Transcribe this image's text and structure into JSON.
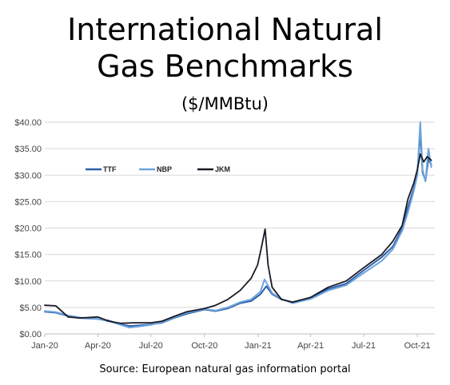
{
  "header": {
    "title_line1": "International Natural",
    "title_line2": "Gas Benchmarks",
    "subtitle": "($/MMBtu)"
  },
  "source": "Source: European natural gas information portal",
  "chart_data": {
    "type": "line",
    "title": "International Natural Gas Benchmarks",
    "subtitle": "($/MMBtu)",
    "xlabel": "",
    "ylabel": "",
    "x_range": [
      "2020-01-01",
      "2021-10-31"
    ],
    "ylim": [
      0,
      40
    ],
    "y_ticks": [
      0,
      5,
      10,
      15,
      20,
      25,
      30,
      35,
      40
    ],
    "y_tick_labels": [
      "$0.00",
      "$5.00",
      "$10.00",
      "$15.00",
      "$20.00",
      "$25.00",
      "$30.00",
      "$35.00",
      "$40.00"
    ],
    "x_ticks": [
      "2020-01-01",
      "2020-04-01",
      "2020-07-01",
      "2020-10-01",
      "2021-01-01",
      "2021-04-01",
      "2021-07-01",
      "2021-10-01"
    ],
    "x_tick_labels": [
      "Jan-20",
      "Apr-20",
      "Jul-20",
      "Oct-20",
      "Jan-21",
      "Apr-21",
      "Jul-21",
      "Oct-21"
    ],
    "grid": "horizontal",
    "legend_position": "top-left",
    "series": [
      {
        "name": "TTF",
        "color": "#2f5ea8",
        "points": [
          [
            "2020-01-01",
            4.2
          ],
          [
            "2020-01-20",
            4.0
          ],
          [
            "2020-02-10",
            3.4
          ],
          [
            "2020-03-01",
            3.0
          ],
          [
            "2020-04-01",
            2.8
          ],
          [
            "2020-04-20",
            2.5
          ],
          [
            "2020-05-10",
            1.8
          ],
          [
            "2020-05-25",
            1.5
          ],
          [
            "2020-06-10",
            1.6
          ],
          [
            "2020-07-01",
            1.8
          ],
          [
            "2020-07-20",
            2.1
          ],
          [
            "2020-08-10",
            3.0
          ],
          [
            "2020-09-01",
            3.8
          ],
          [
            "2020-10-01",
            4.6
          ],
          [
            "2020-10-20",
            4.3
          ],
          [
            "2020-11-10",
            4.8
          ],
          [
            "2020-12-01",
            5.8
          ],
          [
            "2020-12-20",
            6.2
          ],
          [
            "2021-01-05",
            7.5
          ],
          [
            "2021-01-15",
            9.0
          ],
          [
            "2021-01-25",
            7.5
          ],
          [
            "2021-02-10",
            6.5
          ],
          [
            "2021-03-01",
            6.0
          ],
          [
            "2021-04-01",
            6.8
          ],
          [
            "2021-05-01",
            8.5
          ],
          [
            "2021-06-01",
            9.5
          ],
          [
            "2021-07-01",
            12.0
          ],
          [
            "2021-08-01",
            14.5
          ],
          [
            "2021-08-20",
            16.5
          ],
          [
            "2021-09-05",
            20.0
          ],
          [
            "2021-09-15",
            24.0
          ],
          [
            "2021-09-25",
            27.5
          ],
          [
            "2021-10-01",
            30.5
          ],
          [
            "2021-10-06",
            38.0
          ],
          [
            "2021-10-10",
            30.5
          ],
          [
            "2021-10-15",
            29.0
          ],
          [
            "2021-10-20",
            33.0
          ],
          [
            "2021-10-25",
            32.0
          ]
        ]
      },
      {
        "name": "NBP",
        "color": "#6ba4dd",
        "points": [
          [
            "2020-01-01",
            4.3
          ],
          [
            "2020-01-20",
            4.1
          ],
          [
            "2020-02-10",
            3.5
          ],
          [
            "2020-03-01",
            3.1
          ],
          [
            "2020-04-01",
            2.8
          ],
          [
            "2020-04-20",
            2.4
          ],
          [
            "2020-05-10",
            1.7
          ],
          [
            "2020-05-25",
            1.2
          ],
          [
            "2020-06-10",
            1.4
          ],
          [
            "2020-07-01",
            1.7
          ],
          [
            "2020-07-20",
            2.2
          ],
          [
            "2020-08-10",
            3.1
          ],
          [
            "2020-09-01",
            4.0
          ],
          [
            "2020-10-01",
            4.7
          ],
          [
            "2020-10-20",
            4.4
          ],
          [
            "2020-11-10",
            5.0
          ],
          [
            "2020-12-01",
            6.0
          ],
          [
            "2020-12-20",
            6.5
          ],
          [
            "2021-01-05",
            8.0
          ],
          [
            "2021-01-12",
            10.3
          ],
          [
            "2021-01-25",
            7.7
          ],
          [
            "2021-02-10",
            6.6
          ],
          [
            "2021-03-01",
            5.8
          ],
          [
            "2021-04-01",
            6.6
          ],
          [
            "2021-05-01",
            8.2
          ],
          [
            "2021-06-01",
            9.2
          ],
          [
            "2021-07-01",
            11.5
          ],
          [
            "2021-08-01",
            13.8
          ],
          [
            "2021-08-20",
            16.0
          ],
          [
            "2021-09-05",
            19.5
          ],
          [
            "2021-09-15",
            23.0
          ],
          [
            "2021-09-25",
            27.0
          ],
          [
            "2021-10-01",
            30.0
          ],
          [
            "2021-10-06",
            40.0
          ],
          [
            "2021-10-10",
            31.0
          ],
          [
            "2021-10-15",
            28.8
          ],
          [
            "2021-10-20",
            35.0
          ],
          [
            "2021-10-25",
            31.5
          ]
        ]
      },
      {
        "name": "JKM",
        "color": "#1a1a26",
        "points": [
          [
            "2020-01-01",
            5.4
          ],
          [
            "2020-01-20",
            5.3
          ],
          [
            "2020-02-10",
            3.2
          ],
          [
            "2020-03-01",
            3.0
          ],
          [
            "2020-04-01",
            3.2
          ],
          [
            "2020-04-20",
            2.4
          ],
          [
            "2020-05-10",
            2.0
          ],
          [
            "2020-06-01",
            2.1
          ],
          [
            "2020-07-01",
            2.1
          ],
          [
            "2020-07-20",
            2.4
          ],
          [
            "2020-08-10",
            3.3
          ],
          [
            "2020-09-01",
            4.2
          ],
          [
            "2020-10-01",
            4.8
          ],
          [
            "2020-10-20",
            5.4
          ],
          [
            "2020-11-10",
            6.5
          ],
          [
            "2020-12-01",
            8.2
          ],
          [
            "2020-12-20",
            10.5
          ],
          [
            "2020-12-31",
            13.0
          ],
          [
            "2021-01-06",
            16.0
          ],
          [
            "2021-01-13",
            19.8
          ],
          [
            "2021-01-18",
            13.0
          ],
          [
            "2021-01-25",
            8.8
          ],
          [
            "2021-02-10",
            6.5
          ],
          [
            "2021-03-01",
            6.0
          ],
          [
            "2021-04-01",
            6.9
          ],
          [
            "2021-05-01",
            8.8
          ],
          [
            "2021-06-01",
            10.0
          ],
          [
            "2021-07-01",
            12.5
          ],
          [
            "2021-08-01",
            15.0
          ],
          [
            "2021-08-20",
            17.5
          ],
          [
            "2021-09-05",
            20.5
          ],
          [
            "2021-09-15",
            25.5
          ],
          [
            "2021-09-25",
            28.5
          ],
          [
            "2021-10-01",
            31.0
          ],
          [
            "2021-10-06",
            34.0
          ],
          [
            "2021-10-12",
            32.5
          ],
          [
            "2021-10-18",
            33.5
          ],
          [
            "2021-10-25",
            32.8
          ]
        ]
      }
    ]
  }
}
